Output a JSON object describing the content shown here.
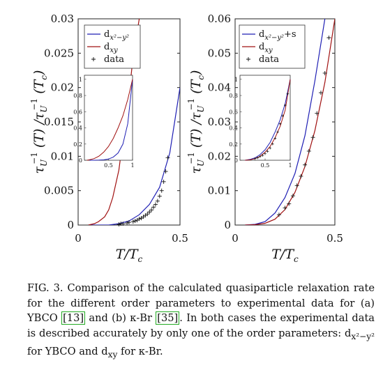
{
  "chart_data": [
    {
      "type": "line",
      "panel": "a",
      "xlabel": "T/T_c",
      "ylabel": "τ_U^{-1}(T) / τ_U^{-1}(T_c)",
      "xlim": [
        0,
        0.5
      ],
      "ylim": [
        0,
        0.03
      ],
      "xticks": [
        "0",
        "0.5"
      ],
      "yticks": [
        "0",
        "0.005",
        "0.01",
        "0.015",
        "0.02",
        "0.025",
        "0.03"
      ],
      "grid": false,
      "legend_position": "top-right",
      "series": [
        {
          "name": "d_{x²−y²}",
          "color": "#1f1fb4",
          "x": [
            0.05,
            0.1,
            0.15,
            0.2,
            0.25,
            0.3,
            0.35,
            0.4,
            0.45,
            0.5
          ],
          "y": [
            0,
            0,
            0,
            0.0002,
            0.0006,
            0.0015,
            0.003,
            0.0055,
            0.0105,
            0.02
          ]
        },
        {
          "name": "d_xy",
          "color": "#a01010",
          "x": [
            0.05,
            0.08,
            0.1,
            0.13,
            0.15,
            0.17,
            0.2,
            0.22,
            0.25,
            0.27,
            0.3
          ],
          "y": [
            0,
            0.0002,
            0.0005,
            0.0012,
            0.0022,
            0.004,
            0.008,
            0.0125,
            0.019,
            0.0245,
            0.03
          ]
        },
        {
          "name": "data",
          "marker": "+",
          "color": "#111111",
          "x": [
            0.2,
            0.21,
            0.22,
            0.24,
            0.25,
            0.27,
            0.28,
            0.29,
            0.3,
            0.31,
            0.32,
            0.33,
            0.34,
            0.35,
            0.36,
            0.37,
            0.38,
            0.39,
            0.4,
            0.41,
            0.42,
            0.43,
            0.44
          ],
          "y": [
            0.0001,
            0.0002,
            0.0002,
            0.0003,
            0.0004,
            0.0005,
            0.0006,
            0.0007,
            0.0009,
            0.001,
            0.0012,
            0.0014,
            0.0016,
            0.0019,
            0.0022,
            0.0026,
            0.003,
            0.0035,
            0.0042,
            0.005,
            0.0063,
            0.0078,
            0.0098
          ]
        }
      ],
      "inset": {
        "xlim": [
          0,
          1
        ],
        "ylim": [
          0,
          1.05
        ],
        "xticks": [
          "0.5",
          "1"
        ],
        "yticks": [
          "0",
          "0.2",
          "0.4",
          "0.6",
          "0.8",
          "1"
        ],
        "series": [
          {
            "name": "d_{x²−y²}",
            "color": "#1f1fb4",
            "x": [
              0.1,
              0.2,
              0.3,
              0.4,
              0.5,
              0.6,
              0.7,
              0.8,
              0.9,
              1.0
            ],
            "y": [
              0,
              0,
              0.002,
              0.005,
              0.015,
              0.04,
              0.09,
              0.2,
              0.45,
              1.0
            ]
          },
          {
            "name": "d_xy",
            "color": "#a01010",
            "x": [
              0.05,
              0.1,
              0.2,
              0.3,
              0.4,
              0.5,
              0.6,
              0.7,
              0.8,
              0.9,
              1.0
            ],
            "y": [
              0,
              0.005,
              0.02,
              0.05,
              0.1,
              0.17,
              0.27,
              0.4,
              0.55,
              0.75,
              1.0
            ]
          }
        ]
      }
    },
    {
      "type": "line",
      "panel": "b",
      "xlabel": "T/T_c",
      "ylabel": "τ_U^{-1}(T) / τ_U^{-1}(T_c)",
      "xlim": [
        0,
        0.5
      ],
      "ylim": [
        0,
        0.06
      ],
      "xticks": [
        "0",
        "0.5"
      ],
      "yticks": [
        "0",
        "0.01",
        "0.02",
        "0.03",
        "0.04",
        "0.05",
        "0.06"
      ],
      "grid": false,
      "legend_position": "top-right",
      "series": [
        {
          "name": "d_{x²−y²}+s",
          "color": "#1f1fb4",
          "x": [
            0.05,
            0.1,
            0.15,
            0.2,
            0.25,
            0.3,
            0.35,
            0.4,
            0.45
          ],
          "y": [
            0,
            0.0002,
            0.001,
            0.0035,
            0.008,
            0.015,
            0.026,
            0.042,
            0.06
          ]
        },
        {
          "name": "d_xy",
          "color": "#a01010",
          "x": [
            0.05,
            0.1,
            0.15,
            0.2,
            0.25,
            0.3,
            0.35,
            0.4,
            0.45,
            0.5
          ],
          "y": [
            0,
            0.0001,
            0.0005,
            0.0017,
            0.0045,
            0.0095,
            0.017,
            0.0275,
            0.0415,
            0.06
          ]
        },
        {
          "name": "data",
          "marker": "+",
          "color": "#111111",
          "x": [
            0.22,
            0.25,
            0.27,
            0.29,
            0.31,
            0.33,
            0.35,
            0.37,
            0.39,
            0.41,
            0.43,
            0.45,
            0.47
          ],
          "y": [
            0.003,
            0.005,
            0.0062,
            0.0085,
            0.0115,
            0.0142,
            0.0175,
            0.0215,
            0.0255,
            0.0325,
            0.0385,
            0.0442,
            0.0545
          ]
        }
      ],
      "inset": {
        "xlim": [
          0,
          1
        ],
        "ylim": [
          0,
          1.05
        ],
        "xticks": [
          "0.5",
          "1"
        ],
        "yticks": [
          "0",
          "0.2",
          "0.4",
          "0.6",
          "0.8",
          "1"
        ],
        "series": [
          {
            "name": "d_{x²−y²}+s",
            "color": "#1f1fb4",
            "x": [
              0.1,
              0.2,
              0.3,
              0.4,
              0.5,
              0.6,
              0.7,
              0.8,
              0.9,
              1.0
            ],
            "y": [
              0,
              0.01,
              0.03,
              0.07,
              0.13,
              0.22,
              0.35,
              0.5,
              0.7,
              1.0
            ]
          },
          {
            "name": "d_xy",
            "color": "#a01010",
            "x": [
              0.1,
              0.2,
              0.3,
              0.4,
              0.5,
              0.6,
              0.7,
              0.8,
              0.9,
              1.0
            ],
            "y": [
              0,
              0.005,
              0.02,
              0.05,
              0.1,
              0.17,
              0.28,
              0.42,
              0.62,
              1.0
            ]
          },
          {
            "name": "data",
            "marker": "+",
            "color": "#111111",
            "x": [
              0.3,
              0.35,
              0.4,
              0.45,
              0.5,
              0.55,
              0.6,
              0.65,
              0.7,
              0.75,
              0.8,
              0.85,
              0.9,
              0.95
            ],
            "y": [
              0.02,
              0.03,
              0.045,
              0.06,
              0.08,
              0.11,
              0.15,
              0.2,
              0.27,
              0.35,
              0.45,
              0.55,
              0.68,
              0.82
            ]
          }
        ]
      }
    }
  ],
  "caption": {
    "part1": "FIG. 3. Comparison of the calculated quasiparticle relaxation rate for the different order parameters to experimental data for (a) YBCO ",
    "ref1": "[13]",
    "part2": " and (b) κ-Br ",
    "ref2": "[35]",
    "part3": ". In both cases the experimental data is described accurately by only one of the order parameters: d",
    "sub": "x²−y²",
    "part4": " for YBCO and d",
    "sub2": "xy",
    "part5": " for κ-Br."
  }
}
